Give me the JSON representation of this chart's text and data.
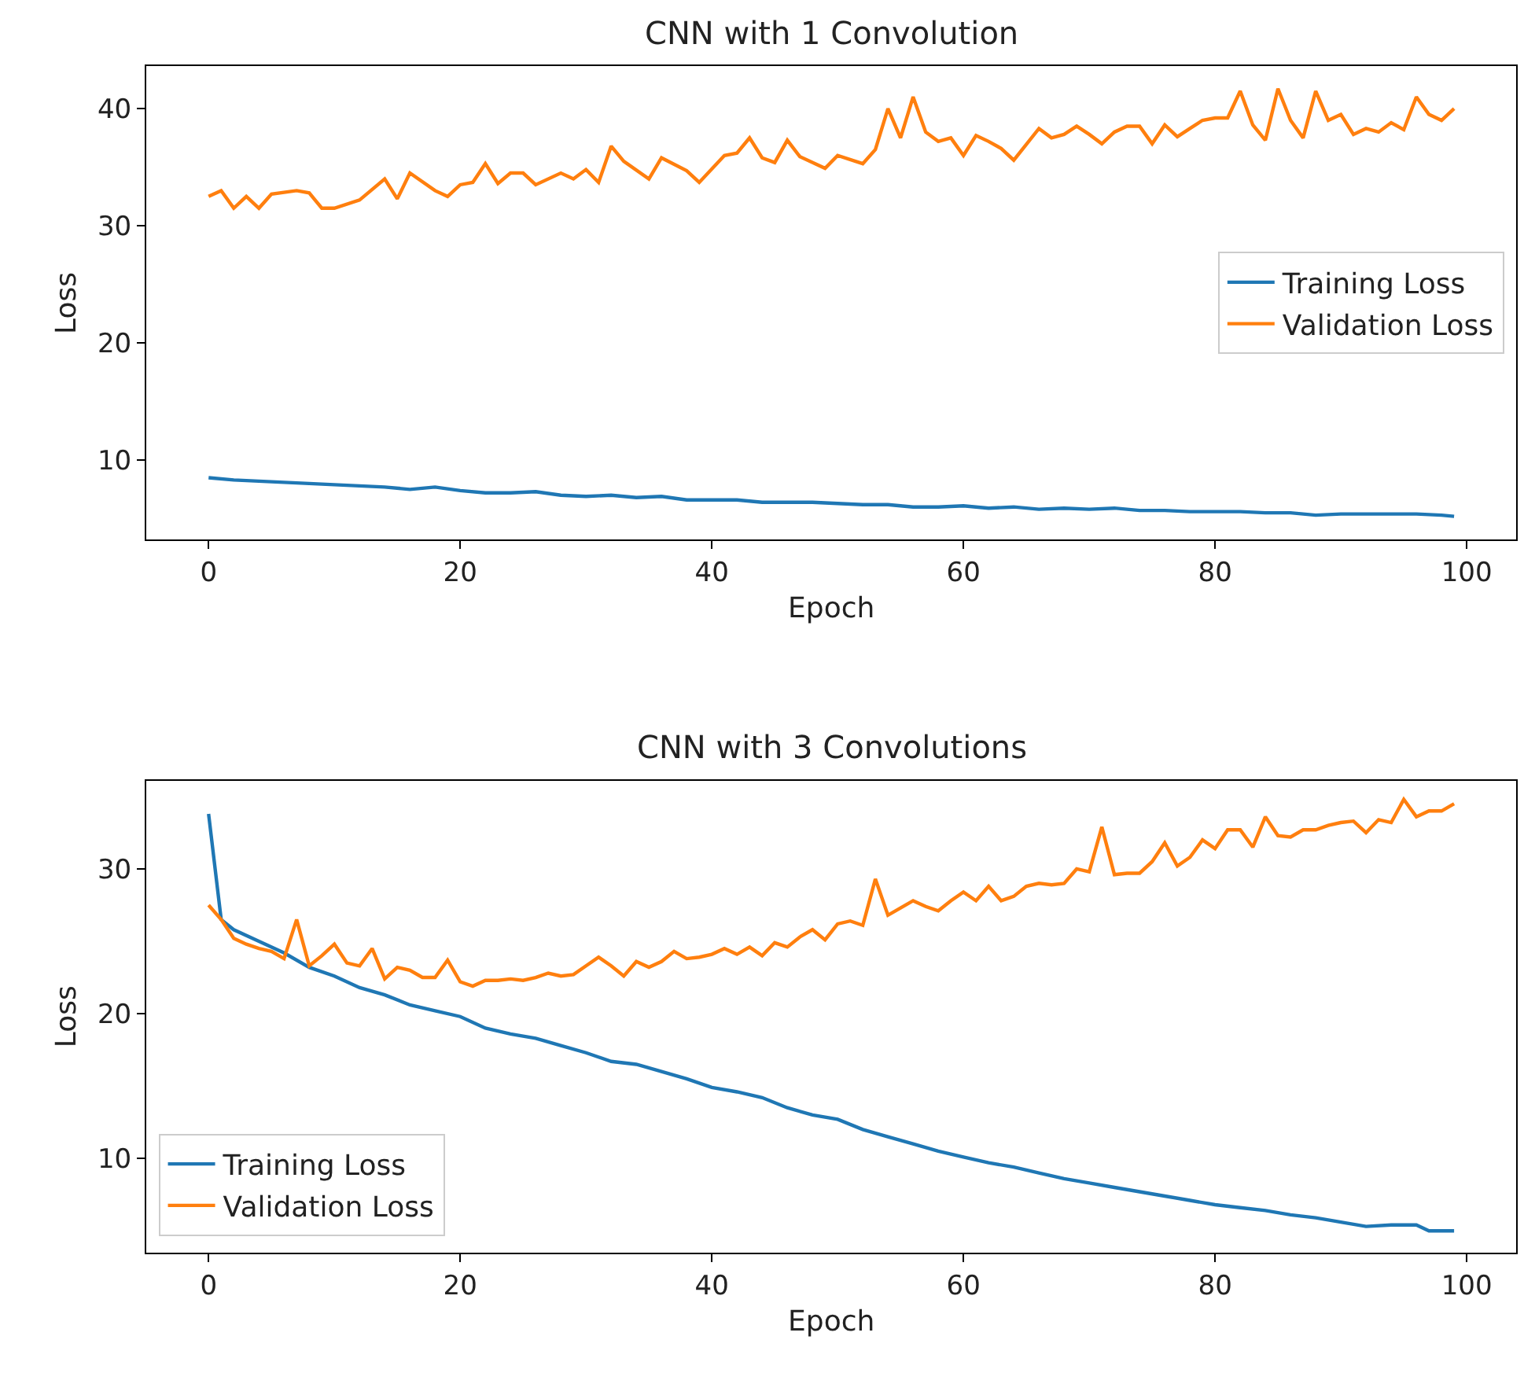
{
  "chart_data": [
    {
      "type": "line",
      "title": "CNN with 1 Convolution",
      "xlabel": "Epoch",
      "ylabel": "Loss",
      "xlim": [
        -4.95,
        103.95
      ],
      "ylim": [
        3.2,
        43.6
      ],
      "xticks": [
        0,
        20,
        40,
        60,
        80,
        100
      ],
      "yticks": [
        10,
        20,
        30,
        40
      ],
      "legend": "right",
      "series": [
        {
          "name": "Training Loss",
          "color": "#1f77b4",
          "x": [
            0,
            2,
            4,
            6,
            8,
            10,
            12,
            14,
            16,
            18,
            20,
            22,
            24,
            26,
            28,
            30,
            32,
            34,
            36,
            38,
            40,
            42,
            44,
            46,
            48,
            50,
            52,
            54,
            56,
            58,
            60,
            62,
            64,
            66,
            68,
            70,
            72,
            74,
            76,
            78,
            80,
            82,
            84,
            86,
            88,
            90,
            92,
            94,
            96,
            98,
            99
          ],
          "values": [
            8.5,
            8.3,
            8.2,
            8.1,
            8.0,
            7.9,
            7.8,
            7.7,
            7.5,
            7.7,
            7.4,
            7.2,
            7.2,
            7.3,
            7.0,
            6.9,
            7.0,
            6.8,
            6.9,
            6.6,
            6.6,
            6.6,
            6.4,
            6.4,
            6.4,
            6.3,
            6.2,
            6.2,
            6.0,
            6.0,
            6.1,
            5.9,
            6.0,
            5.8,
            5.9,
            5.8,
            5.9,
            5.7,
            5.7,
            5.6,
            5.6,
            5.6,
            5.5,
            5.5,
            5.3,
            5.4,
            5.4,
            5.4,
            5.4,
            5.3,
            5.2
          ]
        },
        {
          "name": "Validation Loss",
          "color": "#ff7f0e",
          "x": [
            0,
            1,
            2,
            3,
            4,
            5,
            7,
            8,
            9,
            10,
            12,
            14,
            15,
            16,
            18,
            19,
            20,
            21,
            22,
            23,
            24,
            25,
            26,
            28,
            29,
            30,
            31,
            32,
            33,
            35,
            36,
            38,
            39,
            41,
            42,
            43,
            44,
            45,
            46,
            47,
            49,
            50,
            52,
            53,
            54,
            55,
            56,
            57,
            58,
            59,
            60,
            61,
            62,
            63,
            64,
            66,
            67,
            68,
            69,
            70,
            71,
            72,
            73,
            74,
            75,
            76,
            77,
            78,
            79,
            80,
            81,
            82,
            83,
            84,
            85,
            86,
            87,
            88,
            89,
            90,
            91,
            92,
            93,
            94,
            95,
            96,
            97,
            98,
            99
          ],
          "values": [
            32.5,
            33,
            31.5,
            32.5,
            31.5,
            32.7,
            33,
            32.8,
            31.5,
            31.5,
            32.2,
            34,
            32.3,
            34.5,
            33,
            32.5,
            33.5,
            33.7,
            35.3,
            33.6,
            34.5,
            34.5,
            33.5,
            34.5,
            34,
            34.8,
            33.7,
            36.8,
            35.5,
            34,
            35.8,
            34.7,
            33.7,
            36,
            36.2,
            37.5,
            35.8,
            35.4,
            37.3,
            35.9,
            34.9,
            36,
            35.3,
            36.5,
            40,
            37.5,
            41,
            38,
            37.2,
            37.5,
            36,
            37.7,
            37.2,
            36.6,
            35.6,
            38.3,
            37.5,
            37.8,
            38.5,
            37.8,
            37,
            38,
            38.5,
            38.5,
            37,
            38.6,
            37.6,
            38.3,
            39,
            39.2,
            39.2,
            41.5,
            38.6,
            37.3,
            41.7,
            39,
            37.5,
            41.5,
            39,
            39.5,
            37.8,
            38.3,
            38,
            38.8,
            38.2,
            41,
            39.5,
            39,
            40
          ]
        }
      ]
    },
    {
      "type": "line",
      "title": "CNN with 3 Convolutions",
      "xlabel": "Epoch",
      "ylabel": "Loss",
      "xlim": [
        -4.95,
        103.95
      ],
      "ylim": [
        3.5,
        36.1
      ],
      "xticks": [
        0,
        20,
        40,
        60,
        80,
        100
      ],
      "yticks": [
        10,
        20,
        30
      ],
      "legend": "bottom left",
      "series": [
        {
          "name": "Training Loss",
          "color": "#1f77b4",
          "x": [
            0,
            1,
            2,
            4,
            6,
            8,
            10,
            12,
            14,
            16,
            18,
            20,
            22,
            24,
            26,
            28,
            30,
            32,
            34,
            36,
            38,
            40,
            42,
            44,
            46,
            48,
            50,
            52,
            54,
            56,
            58,
            60,
            62,
            64,
            66,
            68,
            70,
            72,
            74,
            76,
            78,
            80,
            82,
            84,
            86,
            88,
            90,
            92,
            94,
            96,
            97,
            99
          ],
          "values": [
            33.8,
            26.5,
            25.8,
            25,
            24.2,
            23.2,
            22.6,
            21.8,
            21.3,
            20.6,
            20.2,
            19.8,
            19,
            18.6,
            18.3,
            17.8,
            17.3,
            16.7,
            16.5,
            16,
            15.5,
            14.9,
            14.6,
            14.2,
            13.5,
            13,
            12.7,
            12,
            11.5,
            11,
            10.5,
            10.1,
            9.7,
            9.4,
            9,
            8.6,
            8.3,
            8,
            7.7,
            7.4,
            7.1,
            6.8,
            6.6,
            6.4,
            6.1,
            5.9,
            5.6,
            5.3,
            5.4,
            5.4,
            5.0,
            5.0
          ]
        },
        {
          "name": "Validation Loss",
          "color": "#ff7f0e",
          "x": [
            0,
            1,
            2,
            3,
            4,
            5,
            6,
            7,
            8,
            9,
            10,
            11,
            12,
            13,
            14,
            15,
            16,
            17,
            18,
            19,
            20,
            21,
            22,
            23,
            24,
            25,
            26,
            27,
            28,
            29,
            30,
            31,
            32,
            33,
            34,
            35,
            36,
            37,
            38,
            39,
            40,
            41,
            42,
            43,
            44,
            45,
            46,
            47,
            48,
            49,
            50,
            51,
            52,
            53,
            54,
            55,
            56,
            57,
            58,
            59,
            60,
            61,
            62,
            63,
            64,
            65,
            66,
            67,
            68,
            69,
            70,
            71,
            72,
            73,
            74,
            75,
            76,
            77,
            78,
            79,
            80,
            81,
            82,
            83,
            84,
            85,
            86,
            87,
            88,
            89,
            90,
            91,
            92,
            93,
            94,
            95,
            96,
            97,
            98,
            99
          ],
          "values": [
            27.5,
            26.5,
            25.2,
            24.8,
            24.5,
            24.3,
            23.8,
            26.5,
            23.3,
            24,
            24.8,
            23.5,
            23.3,
            24.5,
            22.4,
            23.2,
            23,
            22.5,
            22.5,
            23.7,
            22.2,
            21.9,
            22.3,
            22.3,
            22.4,
            22.3,
            22.5,
            22.8,
            22.6,
            22.7,
            23.3,
            23.9,
            23.3,
            22.6,
            23.6,
            23.2,
            23.6,
            24.3,
            23.8,
            23.9,
            24.1,
            24.5,
            24.1,
            24.6,
            24,
            24.9,
            24.6,
            25.3,
            25.8,
            25.1,
            26.2,
            26.4,
            26.1,
            29.3,
            26.8,
            27.3,
            27.8,
            27.4,
            27.1,
            27.8,
            28.4,
            27.8,
            28.8,
            27.8,
            28.1,
            28.8,
            29,
            28.9,
            29,
            30,
            29.8,
            32.9,
            29.6,
            29.7,
            29.7,
            30.5,
            31.8,
            30.2,
            30.8,
            32,
            31.4,
            32.7,
            32.7,
            31.5,
            33.6,
            32.3,
            32.2,
            32.7,
            32.7,
            33,
            33.2,
            33.3,
            32.5,
            33.4,
            33.2,
            34.8,
            33.6,
            34,
            34,
            34.5
          ]
        }
      ]
    }
  ]
}
